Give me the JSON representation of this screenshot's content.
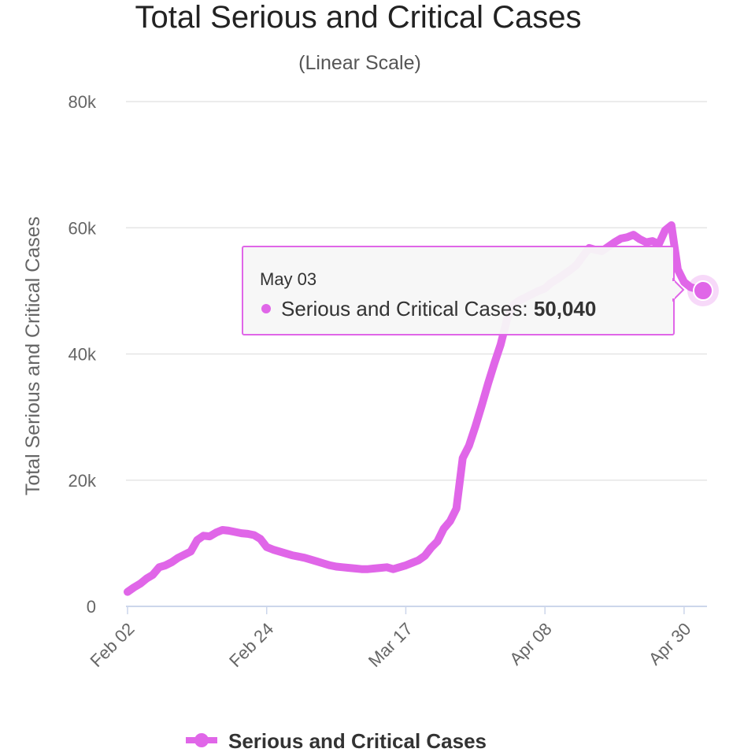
{
  "chart_data": {
    "type": "line",
    "title": "Total Serious and Critical Cases",
    "subtitle": "(Linear Scale)",
    "ylabel": "Total Serious and Critical Cases",
    "xlabel": "",
    "ylim": [
      0,
      80000
    ],
    "y_ticks": [
      "0",
      "20k",
      "40k",
      "60k",
      "80k"
    ],
    "x_tick_labels": [
      "Feb 02",
      "Feb 24",
      "Mar 17",
      "Apr 08",
      "Apr 30"
    ],
    "grid": true,
    "legend_position": "bottom",
    "colors": {
      "series": "#e066e8",
      "grid": "#e6e6e6",
      "axis": "#ccd6eb",
      "tooltip_border": "#e066e8"
    },
    "series": [
      {
        "name": "Serious and Critical Cases",
        "x": [
          "Feb 02",
          "Feb 03",
          "Feb 04",
          "Feb 05",
          "Feb 06",
          "Feb 07",
          "Feb 08",
          "Feb 09",
          "Feb 10",
          "Feb 11",
          "Feb 12",
          "Feb 13",
          "Feb 14",
          "Feb 15",
          "Feb 16",
          "Feb 17",
          "Feb 18",
          "Feb 19",
          "Feb 20",
          "Feb 21",
          "Feb 22",
          "Feb 23",
          "Feb 24",
          "Feb 25",
          "Feb 26",
          "Feb 27",
          "Feb 28",
          "Feb 29",
          "Mar 01",
          "Mar 02",
          "Mar 03",
          "Mar 04",
          "Mar 05",
          "Mar 06",
          "Mar 07",
          "Mar 08",
          "Mar 09",
          "Mar 10",
          "Mar 11",
          "Mar 12",
          "Mar 13",
          "Mar 14",
          "Mar 15",
          "Mar 16",
          "Mar 17",
          "Mar 18",
          "Mar 19",
          "Mar 20",
          "Mar 21",
          "Mar 22",
          "Mar 23",
          "Mar 24",
          "Mar 25",
          "Mar 26",
          "Mar 27",
          "Mar 28",
          "Mar 29",
          "Mar 30",
          "Mar 31",
          "Apr 01",
          "Apr 02",
          "Apr 03",
          "Apr 04",
          "Apr 05",
          "Apr 06",
          "Apr 07",
          "Apr 08",
          "Apr 09",
          "Apr 10",
          "Apr 11",
          "Apr 12",
          "Apr 13",
          "Apr 14",
          "Apr 15",
          "Apr 16",
          "Apr 17",
          "Apr 18",
          "Apr 19",
          "Apr 20",
          "Apr 21",
          "Apr 22",
          "Apr 23",
          "Apr 24",
          "Apr 25",
          "Apr 26",
          "Apr 27",
          "Apr 28",
          "Apr 29",
          "Apr 30",
          "May 01",
          "May 02",
          "May 03"
        ],
        "values": [
          2300,
          3000,
          3600,
          4400,
          5000,
          6200,
          6500,
          7000,
          7700,
          8200,
          8700,
          10500,
          11200,
          11100,
          11700,
          12100,
          12000,
          11800,
          11600,
          11500,
          11300,
          10700,
          9400,
          9000,
          8700,
          8400,
          8100,
          7900,
          7700,
          7400,
          7100,
          6800,
          6500,
          6300,
          6200,
          6100,
          6000,
          5900,
          5900,
          6000,
          6100,
          6200,
          5900,
          6200,
          6500,
          6900,
          7300,
          8000,
          9300,
          10300,
          12300,
          13500,
          15500,
          23500,
          25500,
          28500,
          31800,
          35300,
          38500,
          41500,
          45500,
          47800,
          48500,
          49000,
          49500,
          50000,
          50400,
          51300,
          51900,
          52600,
          53300,
          54100,
          55500,
          56800,
          56500,
          56300,
          57000,
          57700,
          58300,
          58500,
          58900,
          58200,
          57700,
          57900,
          57400,
          59600,
          60400,
          53400,
          51400,
          50600,
          50300,
          50040
        ]
      }
    ],
    "tooltip": {
      "date": "May 03",
      "label": "Serious and Critical Cases: ",
      "value": "50,040"
    }
  }
}
